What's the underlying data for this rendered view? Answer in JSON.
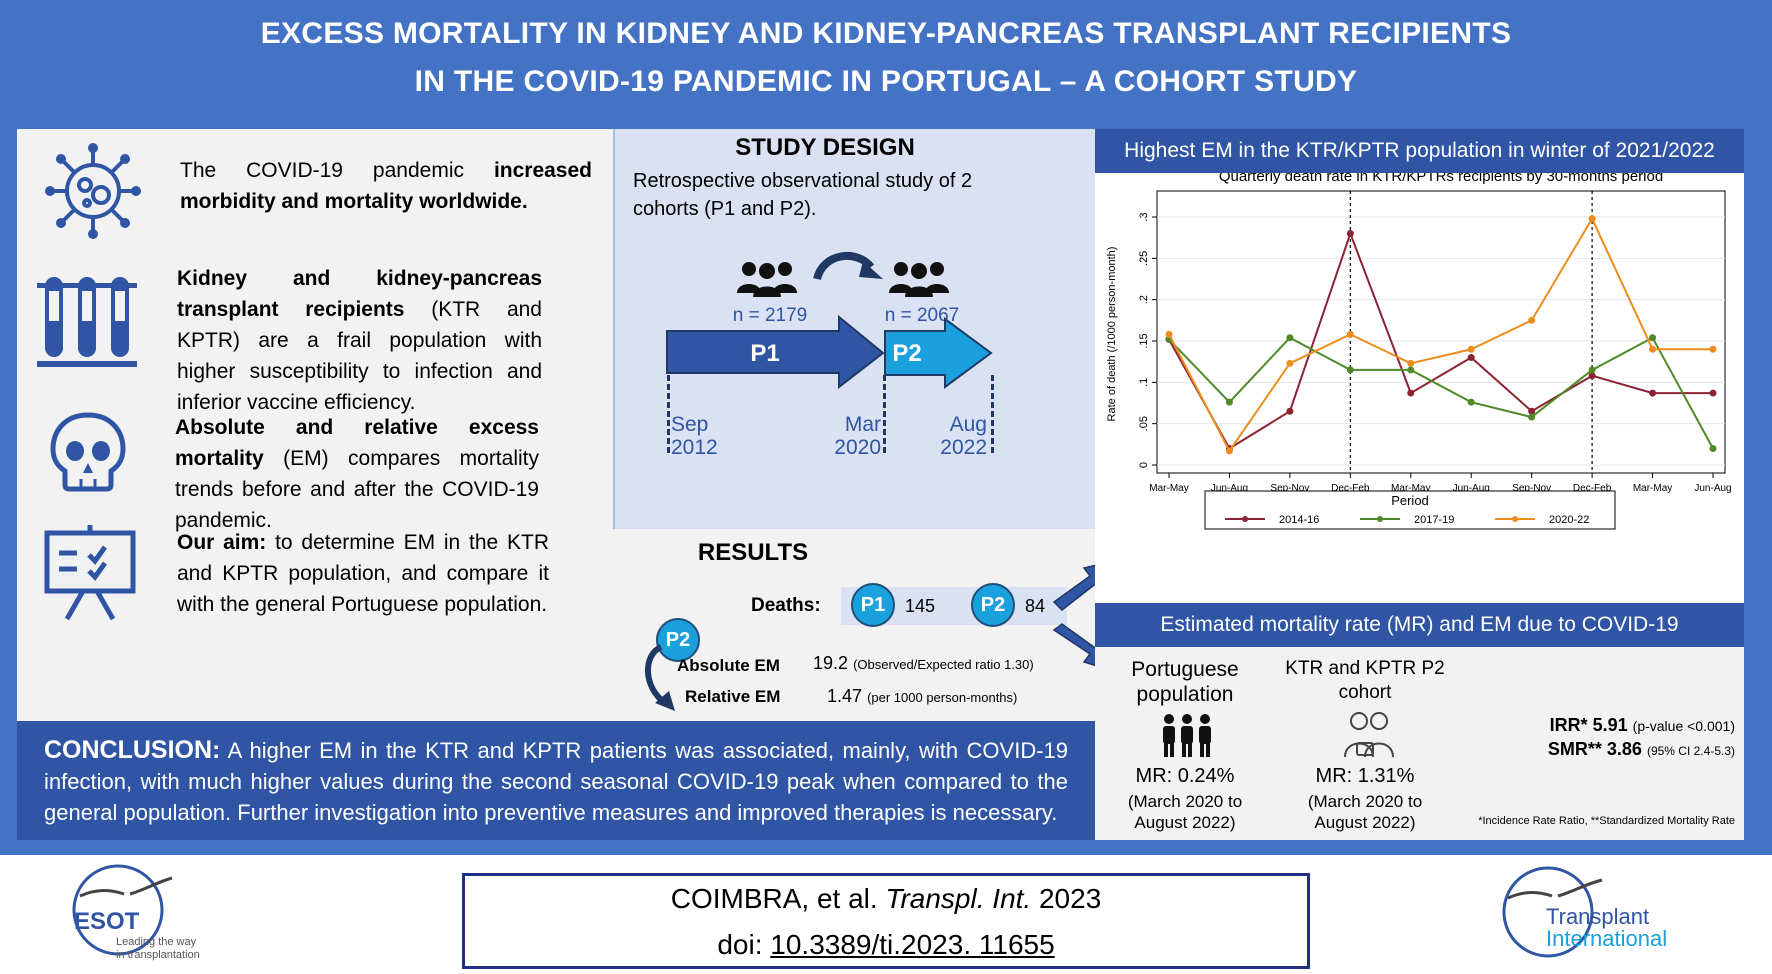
{
  "title": {
    "line1": "EXCESS MORTALITY IN KIDNEY AND KIDNEY-PANCREAS  TRANSPLANT RECIPIENTS",
    "line2": "IN THE COVID-19 PANDEMIC IN PORTUGAL – A COHORT STUDY"
  },
  "left": {
    "item1": {
      "plain": "The COVID-19 pandemic ",
      "bold": "increased morbidity and mortality worldwide."
    },
    "item2": {
      "bold": "Kidney and kidney-pancreas transplant recipients",
      "plain": " (KTR and KPTR) are a frail population with higher susceptibility to infection and inferior vaccine efficiency."
    },
    "item3": {
      "bold": "Absolute and relative excess mortality",
      "plain": " (EM) compares mortality trends before and after the COVID-19 pandemic."
    },
    "item4": {
      "bold": "Our aim:",
      "plain": " to determine EM in the KTR and KPTR population, and compare it with the general Portuguese population."
    }
  },
  "design": {
    "heading": "STUDY DESIGN",
    "text": "Retrospective observational study of 2 cohorts (P1 and P2).",
    "n1": "n = 2179",
    "n2": "n = 2067",
    "p1": "P1",
    "p2": "P2",
    "dates": [
      {
        "month": "Sep",
        "year": "2012"
      },
      {
        "month": "Mar",
        "year": "2020"
      },
      {
        "month": "Aug",
        "year": "2022"
      }
    ]
  },
  "results": {
    "heading": "RESULTS",
    "deaths_label": "Deaths:",
    "p1_badge": "P1",
    "p1_deaths": "145",
    "p2_badge": "P2",
    "p2_deaths": "84",
    "p2_badge_left": "P2",
    "abs_label": "Absolute EM",
    "abs_value": "19.2",
    "abs_note": "(Observed/Expected ratio 1.30)",
    "rel_label": "Relative EM",
    "rel_value": "1.47",
    "rel_note": "(per 1000 person-months)"
  },
  "conclusion": {
    "label": "CONCLUSION:",
    "text": " A higher EM in the KTR and KPTR patients was associated, mainly, with COVID-19 infection, with much higher values during the second seasonal COVID-19 peak when compared to the general population. Further investigation into preventive measures and improved therapies is necessary."
  },
  "chart_header": "Highest EM in the KTR/KPTR population in winter of 2021/2022",
  "chart_data": {
    "type": "line",
    "title": "Quarterly death rate in KTR/KPTRs recipients by 30-months period",
    "xlabel": "",
    "ylabel": "Rate of death (/1000 person-month)",
    "categories": [
      "Mar-May",
      "Jun-Aug",
      "Sep-Nov",
      "Dec-Feb",
      "Mar-May",
      "Jun-Aug",
      "Sep-Nov",
      "Dec-Feb",
      "Mar-May",
      "Jun-Aug"
    ],
    "yticks": [
      "0",
      ".05",
      ".1",
      ".15",
      ".2",
      ".25",
      ".3"
    ],
    "ylim": [
      0,
      0.3
    ],
    "vlines_at": [
      "Dec-Feb",
      "Dec-Feb"
    ],
    "legend_title": "Period",
    "legend_position": "bottom",
    "series": [
      {
        "name": "2014-16",
        "color": "#8b2332",
        "values": [
          0.152,
          0.02,
          0.065,
          0.28,
          0.087,
          0.13,
          0.065,
          0.108,
          0.087,
          0.087
        ]
      },
      {
        "name": "2017-19",
        "color": "#4e8a27",
        "values": [
          0.152,
          0.076,
          0.154,
          0.115,
          0.115,
          0.076,
          0.058,
          0.115,
          0.154,
          0.02
        ]
      },
      {
        "name": "2020-22",
        "color": "#ee8c1e",
        "values": [
          0.158,
          0.017,
          0.123,
          0.158,
          0.123,
          0.14,
          0.175,
          0.298,
          0.14,
          0.14
        ]
      }
    ]
  },
  "mr": {
    "header": "Estimated mortality rate (MR) and EM due to COVID-19",
    "pop_title": "Portuguese population",
    "pop_mr": "MR: 0.24%",
    "pop_period": "(March 2020 to August 2022)",
    "ktr_title": "KTR and KPTR P2 cohort",
    "ktr_mr": "MR: 1.31%",
    "ktr_period": "(March 2020 to August 2022)",
    "irr_label": "IRR*",
    "irr_value": "5.91",
    "irr_note": "(p-value <0.001)",
    "smr_label": "SMR**",
    "smr_value": "3.86",
    "smr_note": "(95% CI 2.4-5.3)",
    "footnote": "*Incidence Rate Ratio, **Standardized Mortality Rate"
  },
  "citation": {
    "authors": "COIMBRA, et al. ",
    "journal": "Transpl.  Int.",
    "year": " 2023",
    "doi_label": "doi: ",
    "doi": "10.3389/ti.2023. 11655"
  },
  "logos": {
    "esot": "ESOT",
    "esot_tag1": "Leading the way",
    "esot_tag2": "in transplantation",
    "ti1": "Transplant",
    "ti2": "International"
  },
  "colors": {
    "frame": "#4472c4",
    "dark_blue": "#2f55a4",
    "light_panel": "#d9e1f2",
    "badge": "#1aa0dc"
  }
}
